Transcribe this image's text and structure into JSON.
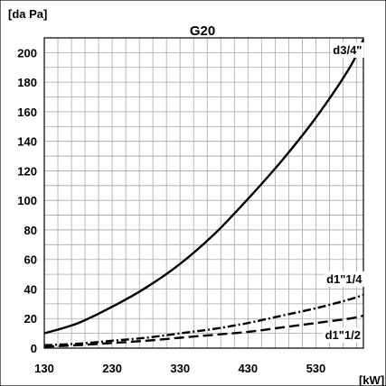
{
  "chart_data": {
    "type": "line",
    "title": "G20",
    "ylabel": "[da Pa]",
    "xlabel": "[kW]",
    "xlim": [
      130,
      600
    ],
    "ylim": [
      0,
      210
    ],
    "x_ticks": [
      130,
      230,
      330,
      430,
      530
    ],
    "y_ticks": [
      0,
      20,
      40,
      60,
      80,
      100,
      120,
      140,
      160,
      180,
      200
    ],
    "grid": true,
    "colors": {
      "curve": "#000000",
      "grid": "#a6a6a6",
      "frame": "#000000"
    },
    "series": [
      {
        "name": "d3/4\"",
        "style": "solid",
        "x": [
          130,
          180,
          230,
          280,
          330,
          380,
          430,
          480,
          530,
          580,
          600
        ],
        "y": [
          10,
          17,
          28,
          41,
          57,
          77,
          101,
          127,
          156,
          190,
          209
        ]
      },
      {
        "name": "d1\"1/4",
        "style": "dashdot",
        "x": [
          130,
          180,
          230,
          280,
          330,
          380,
          430,
          480,
          530,
          580,
          600
        ],
        "y": [
          2,
          3,
          5,
          7,
          10,
          13,
          17,
          22,
          27,
          33,
          36
        ]
      },
      {
        "name": "d1\"1/2",
        "style": "dashed",
        "x": [
          130,
          180,
          230,
          280,
          330,
          380,
          430,
          480,
          530,
          580,
          600
        ],
        "y": [
          1,
          2,
          3.5,
          5,
          7,
          9,
          11,
          14,
          17,
          20,
          22
        ]
      }
    ]
  }
}
